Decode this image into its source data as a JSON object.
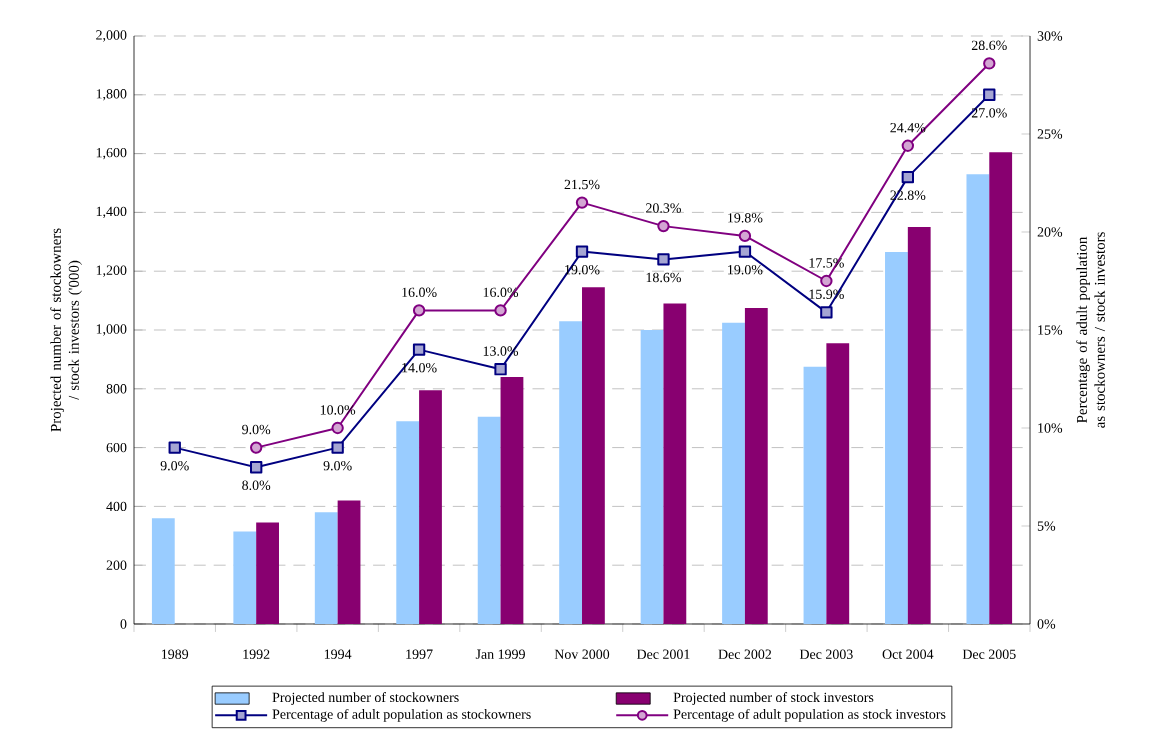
{
  "chart_data": {
    "type": "bar",
    "categories": [
      "1989",
      "1992",
      "1994",
      "1997",
      "Jan 1999",
      "Nov 2000",
      "Dec 2001",
      "Dec 2002",
      "Dec 2003",
      "Oct 2004",
      "Dec 2005"
    ],
    "series": [
      {
        "name": "Projected number of stockowners",
        "color": "#99ccff",
        "values": [
          360,
          315,
          380,
          690,
          705,
          1030,
          1000,
          1025,
          875,
          1265,
          1530
        ]
      },
      {
        "name": "Projected number of stock investors",
        "color": "#880070",
        "values": [
          null,
          345,
          420,
          795,
          840,
          1145,
          1090,
          1075,
          955,
          1350,
          1605
        ]
      },
      {
        "name": "Percentage of adult population as stockowners",
        "type": "line",
        "axis": "y2",
        "marker": "square",
        "color": "#000080",
        "values": [
          9.0,
          8.0,
          9.0,
          14.0,
          13.0,
          19.0,
          18.6,
          19.0,
          15.9,
          22.8,
          27.0
        ],
        "value_labels": [
          "9.0%",
          "8.0%",
          "9.0%",
          "14.0%",
          "13.0%",
          "19.0%",
          "18.6%",
          "19.0%",
          "15.9%",
          "22.8%",
          "27.0%"
        ]
      },
      {
        "name": "Percentage of adult population as stock investors",
        "type": "line",
        "axis": "y2",
        "marker": "circle",
        "color": "#800080",
        "values": [
          null,
          9.0,
          10.0,
          16.0,
          16.0,
          21.5,
          20.3,
          19.8,
          17.5,
          24.4,
          28.6
        ],
        "value_labels": [
          null,
          "9.0%",
          "10.0%",
          "16.0%",
          "16.0%",
          "21.5%",
          "20.3%",
          "19.8%",
          "17.5%",
          "24.4%",
          "28.6%"
        ]
      }
    ],
    "ylabel": "Projected number of stockowners / stock investors ('000)",
    "y2label": "Percentage of adult population as stockowners / stock investors",
    "ylim": [
      0,
      2000
    ],
    "yticks": [
      0,
      200,
      400,
      600,
      800,
      {
        "value": 1000,
        "label": "1,000"
      },
      {
        "value": 1200,
        "label": "1,200"
      },
      {
        "value": 1400,
        "label": "1,400"
      },
      {
        "value": 1600,
        "label": "1,600"
      },
      {
        "value": 1800,
        "label": "1,800"
      },
      {
        "value": 2000,
        "label": "2,000"
      }
    ],
    "y2lim": [
      0,
      30
    ],
    "y2ticks": [
      {
        "value": 0,
        "label": "0%"
      },
      {
        "value": 5,
        "label": "5%"
      },
      {
        "value": 10,
        "label": "10%"
      },
      {
        "value": 15,
        "label": "15%"
      },
      {
        "value": 20,
        "label": "20%"
      },
      {
        "value": 25,
        "label": "25%"
      },
      {
        "value": 30,
        "label": "30%"
      }
    ],
    "grid": "y",
    "legend": "bottom",
    "line_style": "solid"
  }
}
